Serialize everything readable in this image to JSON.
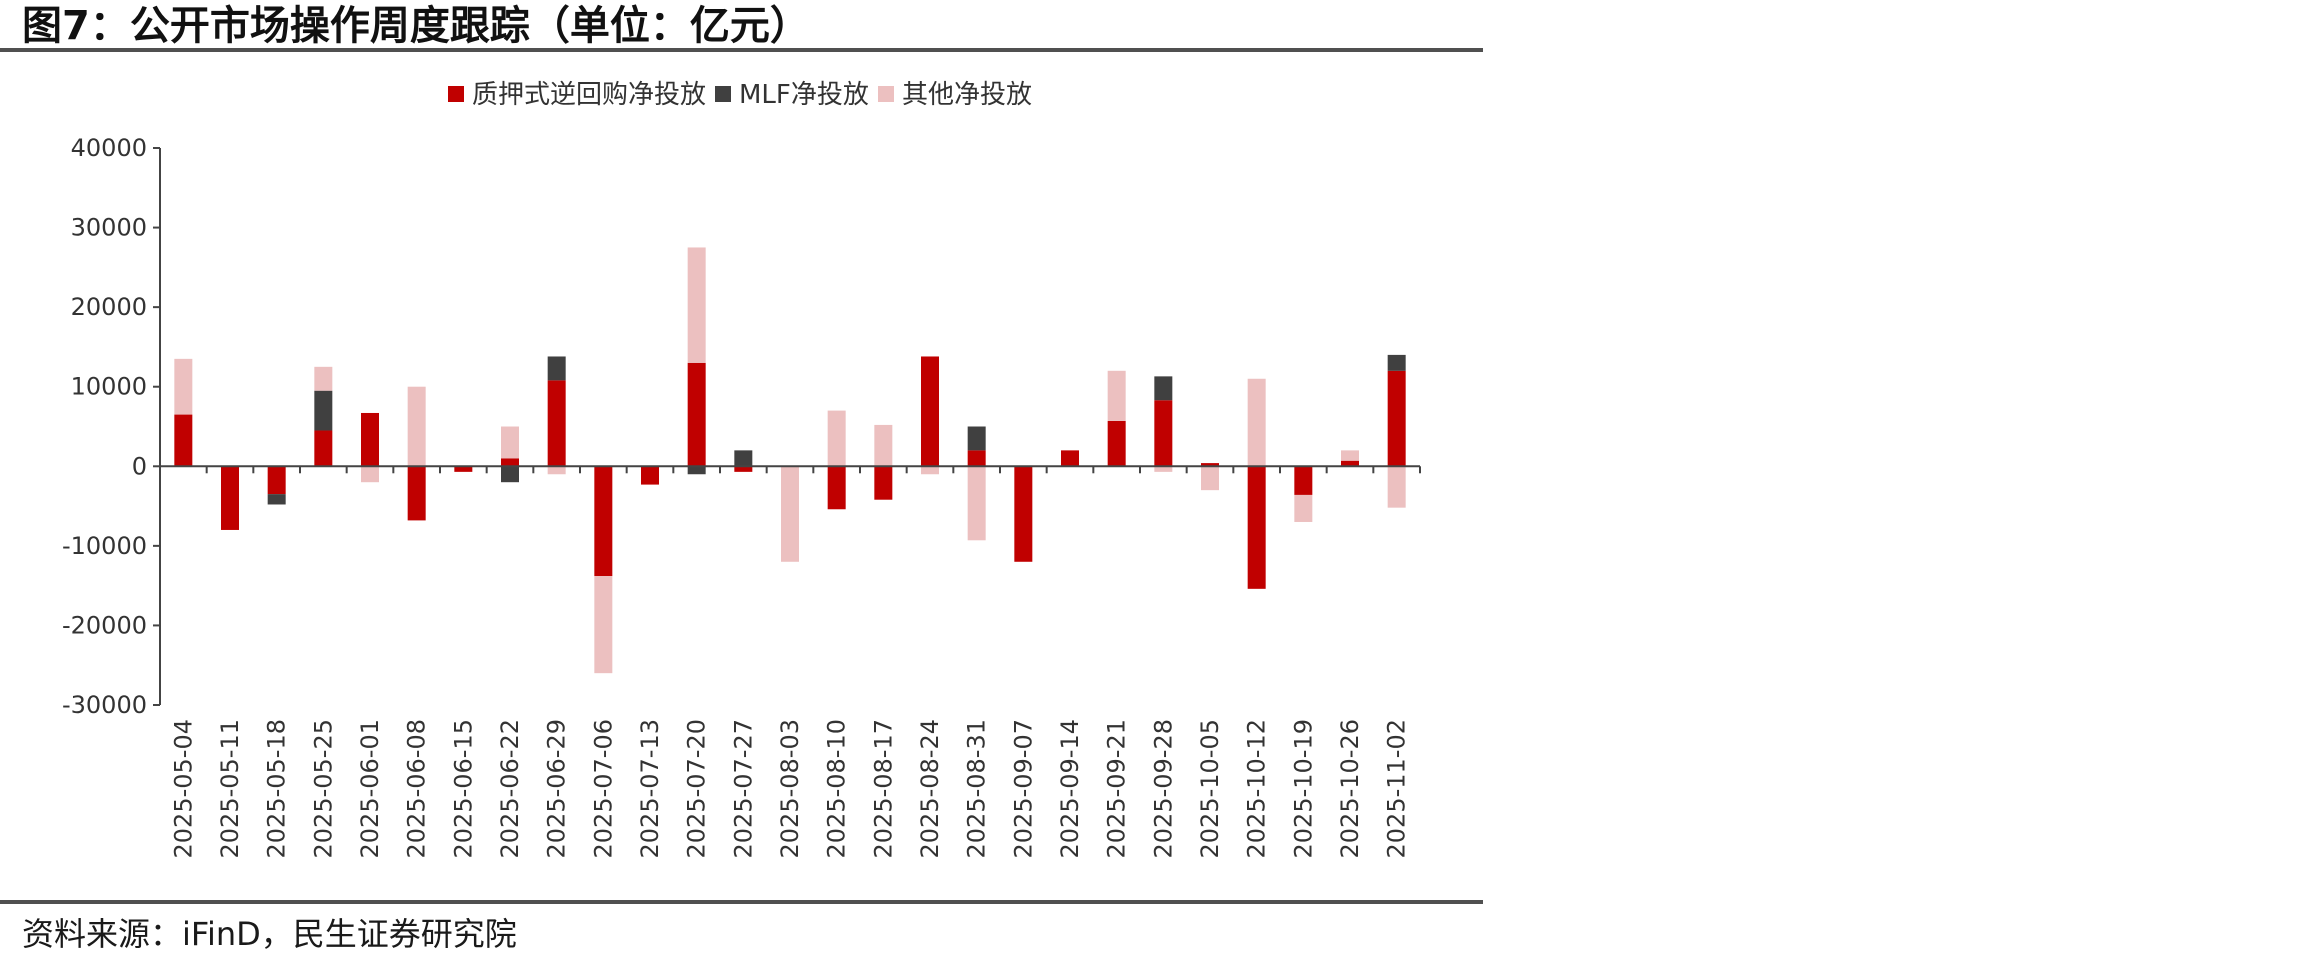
{
  "header": {
    "title": "图7：公开市场操作周度跟踪（单位：亿元）"
  },
  "footer": {
    "source": "资料来源：iFinD，民生证券研究院"
  },
  "chart_data": {
    "type": "bar",
    "stacked": true,
    "title": "",
    "xlabel": "",
    "ylabel": "",
    "ylim": [
      -30000,
      40000
    ],
    "yticks": [
      40000,
      30000,
      20000,
      10000,
      0,
      -10000,
      -20000,
      -30000
    ],
    "grid": false,
    "legend_position": "top-center",
    "categories": [
      "2025-05-04",
      "2025-05-11",
      "2025-05-18",
      "2025-05-25",
      "2025-06-01",
      "2025-06-08",
      "2025-06-15",
      "2025-06-22",
      "2025-06-29",
      "2025-07-06",
      "2025-07-13",
      "2025-07-20",
      "2025-07-27",
      "2025-08-03",
      "2025-08-10",
      "2025-08-17",
      "2025-08-24",
      "2025-08-31",
      "2025-09-07",
      "2025-09-14",
      "2025-09-21",
      "2025-09-28",
      "2025-10-05",
      "2025-10-12",
      "2025-10-19",
      "2025-10-26",
      "2025-11-02"
    ],
    "series": [
      {
        "name": "质押式逆回购净投放",
        "color": "#c00000",
        "values": [
          6500,
          -8000,
          -3500,
          4500,
          6700,
          -6800,
          -700,
          1000,
          10800,
          -13800,
          -2300,
          13000,
          -700,
          0,
          -5400,
          -4200,
          13800,
          2000,
          -12000,
          2000,
          5700,
          8300,
          400,
          -15400,
          -3600,
          700,
          12000
        ]
      },
      {
        "name": "MLF净投放",
        "color": "#404040",
        "values": [
          0,
          0,
          -1300,
          5000,
          0,
          0,
          0,
          -2000,
          3000,
          0,
          0,
          -1000,
          2000,
          0,
          0,
          0,
          0,
          3000,
          0,
          0,
          0,
          3000,
          0,
          0,
          0,
          0,
          2000
        ]
      },
      {
        "name": "其他净投放",
        "color": "#ecc0c0",
        "values": [
          7000,
          0,
          0,
          3000,
          -2000,
          10000,
          0,
          4000,
          -1000,
          -12200,
          0,
          14500,
          0,
          -12000,
          7000,
          5200,
          -1000,
          -9300,
          0,
          0,
          6300,
          -700,
          -3000,
          11000,
          -3400,
          1300,
          -5200
        ]
      }
    ]
  }
}
